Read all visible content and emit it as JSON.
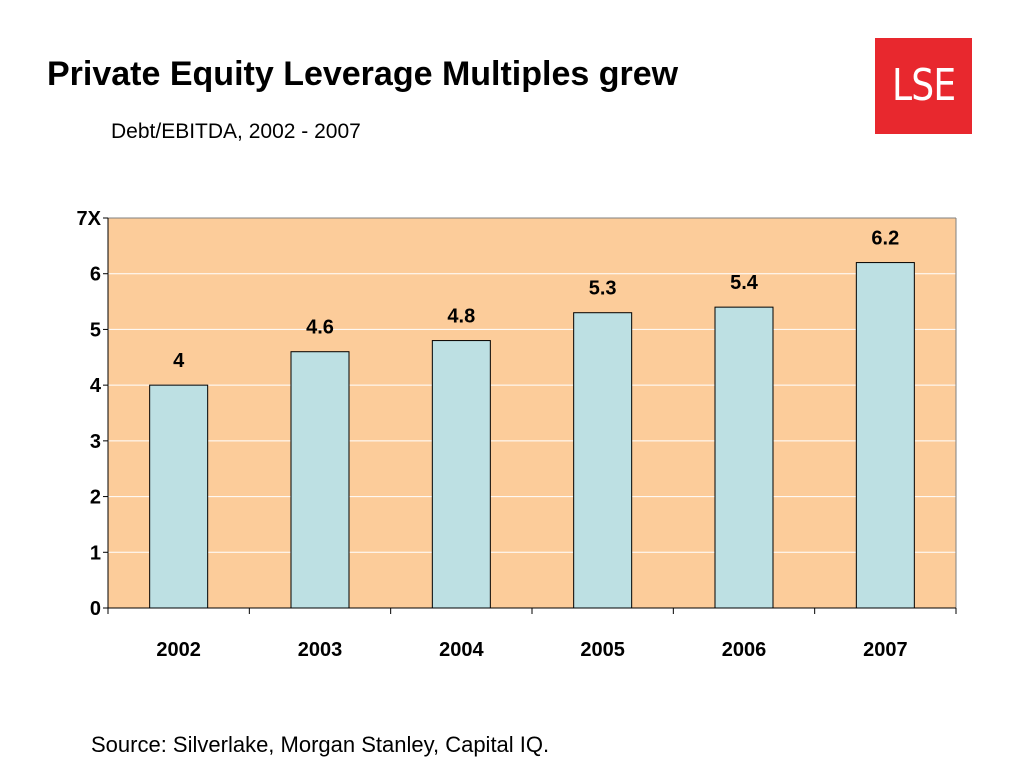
{
  "slide": {
    "title": "Private Equity Leverage Multiples grew",
    "subtitle": "Debt/EBITDA, 2002 - 2007",
    "source": "Source: Silverlake, Morgan Stanley, Capital IQ.",
    "logo_text": "LSE"
  },
  "colors": {
    "plot_background": "#fccc9a",
    "bar_fill": "#bde0e3",
    "bar_stroke": "#000000",
    "gridline": "#ffffff",
    "logo": "#e8282e"
  },
  "chart_data": {
    "type": "bar",
    "title": "",
    "xlabel": "",
    "ylabel": "",
    "categories": [
      "2002",
      "2003",
      "2004",
      "2005",
      "2006",
      "2007"
    ],
    "values": [
      4,
      4.6,
      4.8,
      5.3,
      5.4,
      6.2
    ],
    "data_labels": [
      "4",
      "4.6",
      "4.8",
      "5.3",
      "5.4",
      "6.2"
    ],
    "ylim": [
      0,
      7
    ],
    "y_ticks": [
      "0",
      "1",
      "2",
      "3",
      "4",
      "5",
      "6",
      "7X"
    ],
    "grid": true,
    "legend": "none"
  }
}
